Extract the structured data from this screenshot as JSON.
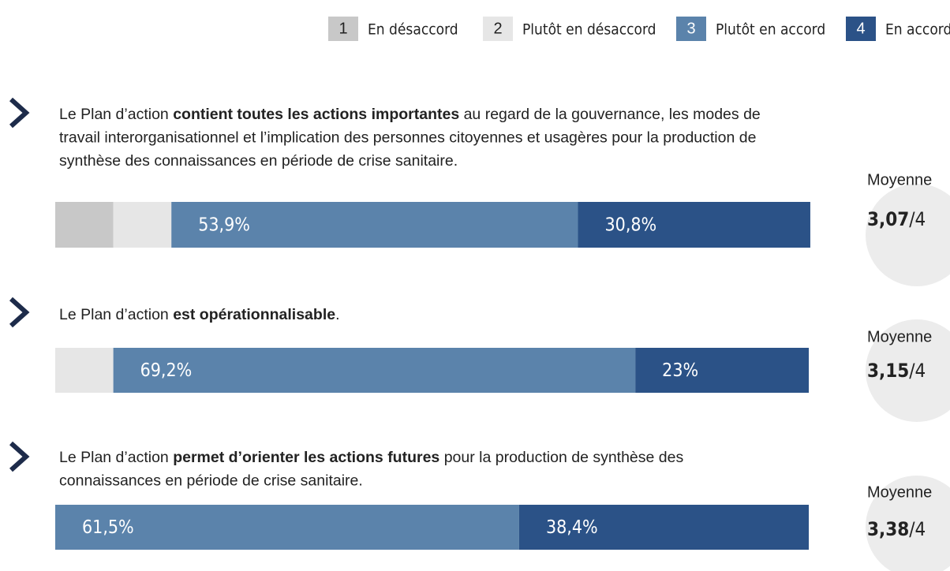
{
  "chart_data": {
    "type": "stacked-bar-horizontal",
    "xlim": [
      0,
      100
    ],
    "series": [
      {
        "name": "En désaccord",
        "code": "1",
        "color": "#c8c8c8",
        "code_color": "#222222",
        "values": [
          7.7,
          0,
          0
        ],
        "value_labels": [
          null,
          null,
          null
        ]
      },
      {
        "name": "Plutôt en désaccord",
        "code": "2",
        "color": "#e6e6e6",
        "code_color": "#222222",
        "values": [
          7.7,
          7.7,
          0
        ],
        "value_labels": [
          null,
          null,
          null
        ]
      },
      {
        "name": "Plutôt en accord",
        "code": "3",
        "color": "#5b83ab",
        "code_color": "#ffffff",
        "values": [
          53.9,
          69.2,
          61.5
        ],
        "value_labels": [
          "53,9%",
          "69,2%",
          "61,5%"
        ]
      },
      {
        "name": "En accord",
        "code": "4",
        "color": "#2b5287",
        "code_color": "#ffffff",
        "values": [
          30.8,
          23,
          38.4
        ],
        "value_labels": [
          "30,8%",
          "23%",
          "38,4%"
        ]
      }
    ],
    "categories": [
      [
        [
          {
            "text": "Le Plan d’action ",
            "bold": false
          },
          {
            "text": "contient toutes les actions importantes",
            "bold": true
          },
          {
            "text": " au regard de la gouvernance, les modes de",
            "bold": false
          }
        ],
        [
          {
            "text": "travail interorganisationnel et l’implication des personnes citoyennes et usagères pour la production de",
            "bold": false
          }
        ],
        [
          {
            "text": "synthèse des connaissances en période de crise sanitaire.",
            "bold": false
          }
        ]
      ],
      [
        [
          {
            "text": "Le Plan d’action ",
            "bold": false
          },
          {
            "text": "est opérationnalisable",
            "bold": true
          },
          {
            "text": ".",
            "bold": false
          }
        ]
      ],
      [
        [
          {
            "text": "Le Plan d’action ",
            "bold": false
          },
          {
            "text": "permet d’orienter les actions futures",
            "bold": true
          },
          {
            "text": " pour la production de synthèse des",
            "bold": false
          }
        ],
        [
          {
            "text": "connaissances en période de crise sanitaire.",
            "bold": false
          }
        ]
      ]
    ],
    "mean_title": "Moyenne",
    "mean_suffix": "/4",
    "means": [
      3.07,
      3.15,
      3.38
    ],
    "mean_labels": [
      "3,07",
      "3,15",
      "3,38"
    ]
  }
}
